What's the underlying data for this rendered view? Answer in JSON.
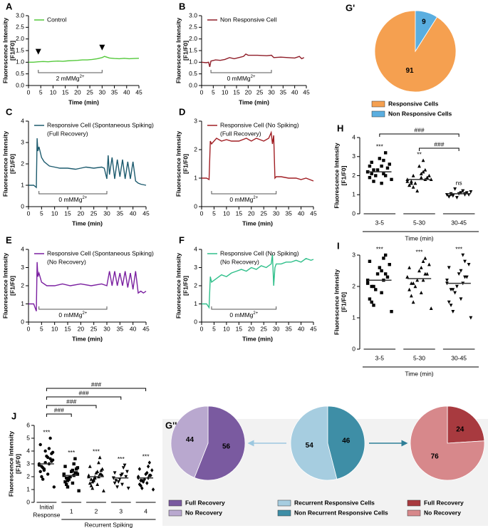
{
  "chart_data": [
    {
      "type": "line",
      "panel": "A",
      "ylabel": [
        "Fluorescence Intensity",
        "[F1/F0]"
      ],
      "xlabel": "Time (min)",
      "xlim": [
        0,
        45
      ],
      "xticks": [
        0,
        5,
        10,
        15,
        20,
        25,
        30,
        35,
        40,
        45
      ],
      "ylim": [
        0,
        3
      ],
      "yticks": [
        {
          "value": 0,
          "label": "0.0"
        },
        0.5,
        {
          "value": 1,
          "label": "1.0"
        },
        1.5,
        {
          "value": 2,
          "label": "2.0"
        },
        2.5,
        {
          "value": 3,
          "label": "3.0"
        }
      ],
      "x": [
        0,
        2,
        4,
        6,
        8,
        10,
        12,
        14,
        16,
        18,
        20,
        22,
        24,
        26,
        28,
        30,
        31,
        33,
        35,
        37,
        39,
        41,
        43,
        45
      ],
      "series": [
        {
          "name": [
            "Control"
          ],
          "color": "#54c93b",
          "values": [
            1.0,
            1.0,
            1.02,
            1.03,
            1.02,
            1.04,
            1.05,
            1.04,
            1.06,
            1.07,
            1.08,
            1.1,
            1.1,
            1.12,
            1.15,
            1.2,
            1.25,
            1.18,
            1.16,
            1.15,
            1.17,
            1.15,
            1.16,
            1.17
          ]
        }
      ],
      "markers": [
        4,
        30
      ],
      "span": {
        "range": [
          4,
          30
        ],
        "label": "2 mMMg",
        "sup": "2+"
      }
    },
    {
      "type": "line",
      "panel": "B",
      "ylabel": [
        "Fluorescence Intensity",
        "[F1/F0]"
      ],
      "xlabel": "Time (min)",
      "xlim": [
        0,
        45
      ],
      "xticks": [
        0,
        5,
        10,
        15,
        20,
        25,
        30,
        35,
        40,
        45
      ],
      "ylim": [
        0,
        3
      ],
      "yticks": [
        {
          "value": 0,
          "label": "0.0"
        },
        0.5,
        {
          "value": 1,
          "label": "1.0"
        },
        1.5,
        {
          "value": 2,
          "label": "2.0"
        },
        2.5,
        {
          "value": 3,
          "label": "3.0"
        }
      ],
      "x": [
        0,
        2,
        3,
        3.5,
        4,
        6,
        8,
        10,
        12,
        14,
        16,
        18,
        19,
        20,
        24,
        28,
        30,
        31,
        34,
        37,
        40,
        42,
        43,
        44
      ],
      "series": [
        {
          "name": [
            "Non Responsive Cell"
          ],
          "color": "#8f1d28",
          "values": [
            1.0,
            0.98,
            1.0,
            0.8,
            1.05,
            1.1,
            1.08,
            1.12,
            1.2,
            1.15,
            1.2,
            1.25,
            1.35,
            1.3,
            1.3,
            1.28,
            1.3,
            1.2,
            1.22,
            1.2,
            1.18,
            1.25,
            1.15,
            1.2
          ]
        }
      ],
      "span": {
        "range": [
          4,
          30
        ],
        "label": "0 mMMg",
        "sup": "2+"
      }
    },
    {
      "type": "pie",
      "panel": "G'",
      "labels": [
        "Responsive Cells",
        "Non Responsive Cells"
      ],
      "values": [
        91,
        9
      ],
      "colors": [
        "#f5a050",
        "#5aaee0"
      ],
      "counterclockwise": true
    },
    {
      "type": "line",
      "panel": "C",
      "ylabel": [
        "Fluorescence Intensity",
        "[F1/F0]"
      ],
      "xlabel": "Time (min)",
      "xlim": [
        0,
        45
      ],
      "xticks": [
        0,
        5,
        10,
        15,
        20,
        25,
        30,
        35,
        40,
        45
      ],
      "ylim": [
        0,
        4
      ],
      "yticks": [
        0,
        1,
        2,
        3,
        4
      ],
      "x": [
        0,
        2,
        3,
        3.3,
        3.6,
        4,
        5,
        6,
        8,
        10,
        12,
        15,
        18,
        20,
        22,
        25,
        28,
        29,
        30,
        30.5,
        31,
        32,
        33,
        34,
        35,
        36,
        37,
        38,
        39,
        40,
        41,
        42,
        43,
        45
      ],
      "series": [
        {
          "name": [
            "Responsive Cell (Spontaneous Spiking)",
            "(Full Recovery)"
          ],
          "color": "#1d5b6e",
          "values": [
            1.0,
            1.0,
            0.9,
            3.2,
            2.6,
            2.8,
            2.3,
            2.1,
            1.9,
            1.85,
            1.8,
            1.8,
            1.75,
            1.8,
            1.85,
            1.8,
            1.85,
            1.8,
            1.3,
            2.4,
            1.5,
            2.3,
            1.3,
            2.2,
            1.4,
            2.2,
            1.3,
            2.1,
            1.3,
            2.1,
            1.2,
            1.1,
            1.05,
            1.0
          ]
        }
      ],
      "span": {
        "range": [
          4,
          30
        ],
        "label": "0 mMMg",
        "sup": "2+"
      }
    },
    {
      "type": "line",
      "panel": "D",
      "ylabel": [
        "Fluorescence Intensity",
        "[F1/F0]"
      ],
      "xlabel": "Time (min)",
      "xlim": [
        0,
        45
      ],
      "xticks": [
        0,
        5,
        10,
        15,
        20,
        25,
        30,
        35,
        40,
        45
      ],
      "ylim": [
        0,
        3
      ],
      "yticks": [
        0,
        1,
        2,
        3
      ],
      "x": [
        0,
        2,
        3,
        3.5,
        4,
        6,
        8,
        10,
        12,
        15,
        18,
        20,
        22,
        25,
        27,
        28,
        28.5,
        29,
        29.5,
        30,
        32,
        35,
        38,
        40,
        42,
        45
      ],
      "series": [
        {
          "name": [
            "Responsive Cell (No Spiking)",
            "(Full Recovery)"
          ],
          "color": "#a11f24",
          "values": [
            1.0,
            1.0,
            0.95,
            2.3,
            2.2,
            2.4,
            2.3,
            2.35,
            2.3,
            2.3,
            2.4,
            2.3,
            2.4,
            2.3,
            2.4,
            2.6,
            2.2,
            2.5,
            1.0,
            1.05,
            1.05,
            1.0,
            1.0,
            0.95,
            1.0,
            0.9
          ]
        }
      ],
      "span": {
        "range": [
          4,
          30
        ],
        "label": "0 mMMg",
        "sup": "2+"
      }
    },
    {
      "type": "strip",
      "panel": "H",
      "ylabel": [
        "Fluorescence Intensity",
        "[F1/F0]"
      ],
      "xlabel": "Time (min)",
      "ylim": [
        0,
        4
      ],
      "yticks": [
        0,
        1,
        2,
        3,
        4
      ],
      "categories": [
        [
          "3-5"
        ],
        [
          "5-30"
        ],
        [
          "30-45"
        ]
      ],
      "series": [
        {
          "marker": "square",
          "values": [
            2.2,
            2.5,
            1.9,
            2.8,
            2.1,
            3.2,
            1.7,
            2.4,
            2.0,
            2.6,
            2.3,
            1.8,
            2.9,
            2.2,
            1.6,
            2.5,
            2.1,
            2.7,
            2.0,
            2.3
          ]
        },
        {
          "marker": "triangle",
          "values": [
            1.8,
            2.1,
            1.5,
            2.8,
            1.7,
            2.3,
            1.4,
            1.9,
            1.6,
            2.0,
            1.2,
            1.8,
            2.5,
            1.7,
            1.9,
            1.5,
            2.2,
            1.6,
            1.8,
            2.0
          ]
        },
        {
          "marker": "triangle-down",
          "values": [
            1.0,
            1.1,
            0.9,
            1.2,
            1.05,
            1.0,
            0.95,
            1.1,
            1.3,
            1.0,
            0.85,
            1.15,
            1.05,
            1.0,
            1.1,
            0.9,
            1.2,
            1.0,
            1.05,
            0.95
          ]
        }
      ],
      "means": [
        2.2,
        1.8,
        1.05
      ],
      "annotations": [
        "***",
        "**",
        "ns"
      ],
      "significance": [
        {
          "from": 0,
          "to": 2,
          "label": "###"
        },
        {
          "from": 1,
          "to": 2,
          "label": "###"
        }
      ]
    },
    {
      "type": "line",
      "panel": "E",
      "ylabel": [
        "Fluorescence Intensity",
        "[F1/F0]"
      ],
      "xlabel": "Time (min)",
      "xlim": [
        0,
        45
      ],
      "xticks": [
        0,
        5,
        10,
        15,
        20,
        25,
        30,
        35,
        40,
        45
      ],
      "ylim": [
        0,
        4
      ],
      "yticks": [
        0,
        1,
        2,
        3,
        4
      ],
      "x": [
        0,
        2,
        3,
        3.3,
        3.6,
        4,
        5,
        7,
        10,
        13,
        16,
        20,
        24,
        28,
        30,
        31,
        32,
        33,
        34,
        35,
        36,
        37,
        38,
        39,
        40,
        41,
        42,
        43,
        44,
        45
      ],
      "series": [
        {
          "name": [
            "Responsive Cell (Spontaneous Spiking)",
            "(No Recovery)"
          ],
          "color": "#7a1fa0",
          "values": [
            1.0,
            1.0,
            0.6,
            3.3,
            2.5,
            2.7,
            2.2,
            2.0,
            2.0,
            2.1,
            2.0,
            2.1,
            2.0,
            2.1,
            2.0,
            2.8,
            2.0,
            2.8,
            2.0,
            2.7,
            2.0,
            2.8,
            1.9,
            2.7,
            1.8,
            2.8,
            1.6,
            1.7,
            1.6,
            1.7
          ]
        }
      ],
      "span": {
        "range": [
          4,
          30
        ],
        "label": "0 mMMg",
        "sup": "2+"
      }
    },
    {
      "type": "line",
      "panel": "F",
      "ylabel": [
        "Fluorescence Intensity",
        "[F1/F0]"
      ],
      "xlabel": "Time (min)",
      "xlim": [
        0,
        45
      ],
      "xticks": [
        0,
        5,
        10,
        15,
        20,
        25,
        30,
        35,
        40,
        45
      ],
      "ylim": [
        0,
        4
      ],
      "yticks": [
        0,
        1,
        2,
        3,
        4
      ],
      "x": [
        0,
        2,
        3,
        3.5,
        4,
        6,
        8,
        10,
        12,
        14,
        16,
        18,
        20,
        22,
        24,
        26,
        28,
        28.5,
        29,
        29.5,
        30,
        32,
        34,
        36,
        38,
        40,
        42,
        44,
        45
      ],
      "series": [
        {
          "name": [
            "Responsive Cell (No Spiking)",
            "(No Recovery)"
          ],
          "color": "#2fbf8a",
          "values": [
            1.0,
            1.0,
            0.8,
            2.5,
            2.2,
            2.4,
            2.6,
            2.5,
            2.7,
            2.8,
            2.9,
            2.8,
            3.0,
            2.9,
            3.1,
            3.0,
            3.2,
            3.7,
            2.0,
            3.0,
            3.2,
            3.2,
            3.3,
            3.3,
            3.4,
            3.3,
            3.5,
            3.4,
            3.45
          ]
        }
      ],
      "span": {
        "range": [
          4,
          30
        ],
        "label": "0 mMMg",
        "sup": "2+"
      }
    },
    {
      "type": "strip",
      "panel": "I",
      "ylabel": [
        "Fluorescence Intensity",
        "[F1/F0]"
      ],
      "xlabel": "Time (min)",
      "ylim": [
        0,
        3
      ],
      "yticks": [
        0,
        1,
        2,
        3
      ],
      "categories": [
        [
          "3-5"
        ],
        [
          "5-30"
        ],
        [
          "30-45"
        ]
      ],
      "series": [
        {
          "marker": "square",
          "values": [
            2.2,
            2.5,
            1.6,
            2.9,
            2.0,
            3.0,
            1.4,
            2.3,
            1.9,
            2.7,
            2.4,
            1.2,
            2.6,
            2.1,
            1.8,
            2.8,
            2.2,
            1.5,
            2.4,
            2.0
          ]
        },
        {
          "marker": "triangle",
          "values": [
            2.3,
            2.6,
            1.9,
            2.8,
            2.1,
            2.9,
            1.5,
            2.4,
            2.0,
            2.7,
            2.2,
            1.3,
            2.5,
            2.3,
            1.8,
            2.6,
            2.2,
            1.7,
            2.4,
            2.1
          ]
        },
        {
          "marker": "triangle-down",
          "values": [
            2.1,
            2.5,
            1.5,
            3.0,
            1.9,
            2.8,
            1.2,
            2.3,
            1.8,
            2.7,
            2.0,
            1.0,
            2.4,
            2.2,
            1.6,
            2.6,
            2.1,
            1.4,
            2.3,
            1.9
          ]
        }
      ],
      "means": [
        2.2,
        2.25,
        2.1
      ],
      "annotations": [
        "***",
        "***",
        "***"
      ]
    },
    {
      "type": "strip",
      "panel": "J",
      "ylabel": [
        "Fluorescence Intensity",
        "[F1/F0]"
      ],
      "ylim": [
        0,
        6
      ],
      "yticks": [
        0,
        1,
        2,
        3,
        4,
        5,
        6
      ],
      "categories": [
        [
          "Initial",
          "Response"
        ],
        [
          "1"
        ],
        [
          "2"
        ],
        [
          "3"
        ],
        [
          "4"
        ]
      ],
      "series": [
        {
          "marker": "circle",
          "values": [
            3.0,
            3.5,
            2.4,
            4.2,
            2.8,
            5.0,
            1.8,
            3.2,
            2.6,
            3.9,
            3.1,
            1.2,
            3.6,
            2.9,
            2.2,
            4.5,
            3.0,
            2.0,
            3.4,
            2.7,
            3.8,
            2.5,
            3.3,
            4.0
          ]
        },
        {
          "marker": "square",
          "values": [
            2.1,
            2.5,
            1.6,
            3.0,
            1.9,
            3.4,
            1.2,
            2.3,
            1.8,
            2.7,
            2.0,
            0.9,
            2.4,
            2.2,
            1.5,
            2.8,
            2.1,
            1.4,
            2.3,
            1.7,
            2.6,
            1.9,
            2.2,
            2.0
          ]
        },
        {
          "marker": "triangle",
          "values": [
            2.0,
            2.4,
            1.5,
            3.1,
            1.8,
            3.5,
            1.1,
            2.2,
            1.7,
            2.6,
            1.9,
            0.9,
            2.3,
            2.1,
            1.4,
            2.8,
            2.0,
            1.3,
            2.2,
            1.6,
            2.5,
            1.8,
            2.1,
            2.0
          ]
        },
        {
          "marker": "triangle-down",
          "values": [
            1.9,
            2.2,
            1.5,
            2.7,
            1.7,
            2.9,
            1.2,
            2.0,
            1.6,
            2.4,
            1.8,
            1.1,
            2.1,
            1.9,
            1.4,
            2.3
          ]
        },
        {
          "marker": "diamond",
          "values": [
            1.9,
            2.3,
            1.4,
            2.8,
            1.7,
            3.1,
            1.1,
            2.1,
            1.6,
            2.5,
            1.8,
            1.0,
            2.2,
            2.0,
            1.5,
            2.6,
            1.9,
            1.3,
            2.1,
            1.7
          ]
        }
      ],
      "means": [
        3.0,
        2.1,
        2.0,
        1.9,
        1.9
      ],
      "annotations": [
        "***",
        "***",
        "***",
        "***",
        "***"
      ],
      "significance": [
        {
          "from": 0,
          "to": 4,
          "label": "###"
        },
        {
          "from": 0,
          "to": 3,
          "label": "###"
        },
        {
          "from": 0,
          "to": 2,
          "label": "###"
        },
        {
          "from": 0,
          "to": 1,
          "label": "###"
        }
      ],
      "group": {
        "label": "Recurrent Spiking",
        "from": 1,
        "to": 4
      }
    },
    {
      "type": "pie",
      "panel": "G''",
      "labels": [
        "Full Recovery",
        "No Recovery"
      ],
      "values": [
        56,
        44
      ],
      "colors": [
        "#7a5aa0",
        "#b9a8cf"
      ],
      "counterclockwise": false
    },
    {
      "type": "pie",
      "labels": [
        "Recurrent Responsive Cells",
        "Non Recurrent Responsive Cells"
      ],
      "values": [
        54,
        46
      ],
      "colors": [
        "#a6cde0",
        "#3e8ea6"
      ],
      "counterclockwise": true
    },
    {
      "type": "pie",
      "labels": [
        "Full Recovery",
        "No Recovery"
      ],
      "values": [
        24,
        76
      ],
      "colors": [
        "#a83a3f",
        "#d7888b"
      ],
      "counterclockwise": false
    }
  ]
}
